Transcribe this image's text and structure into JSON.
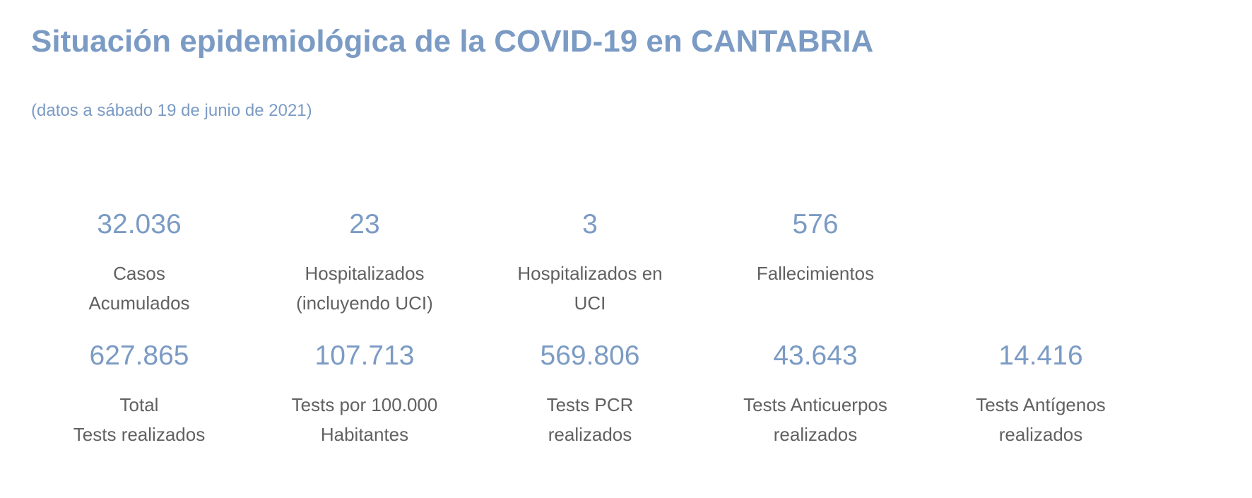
{
  "header": {
    "title": "Situación epidemiológica de la COVID-19 en CANTABRIA",
    "subtitle": "(datos a sábado 19 de junio de 2021)"
  },
  "stats_row1": [
    {
      "value": "32.036",
      "label": "Casos\nAcumulados"
    },
    {
      "value": "23",
      "label": "Hospitalizados\n(incluyendo UCI)"
    },
    {
      "value": "3",
      "label": "Hospitalizados en\nUCI"
    },
    {
      "value": "576",
      "label": "Fallecimientos"
    }
  ],
  "stats_row2": [
    {
      "value": "627.865",
      "label": "Total\nTests realizados"
    },
    {
      "value": "107.713",
      "label": "Tests por 100.000\nHabitantes"
    },
    {
      "value": "569.806",
      "label": " Tests PCR\nrealizados"
    },
    {
      "value": "43.643",
      "label": "Tests Anticuerpos\nrealizados"
    },
    {
      "value": "14.416",
      "label": "Tests Antígenos\nrealizados"
    }
  ]
}
